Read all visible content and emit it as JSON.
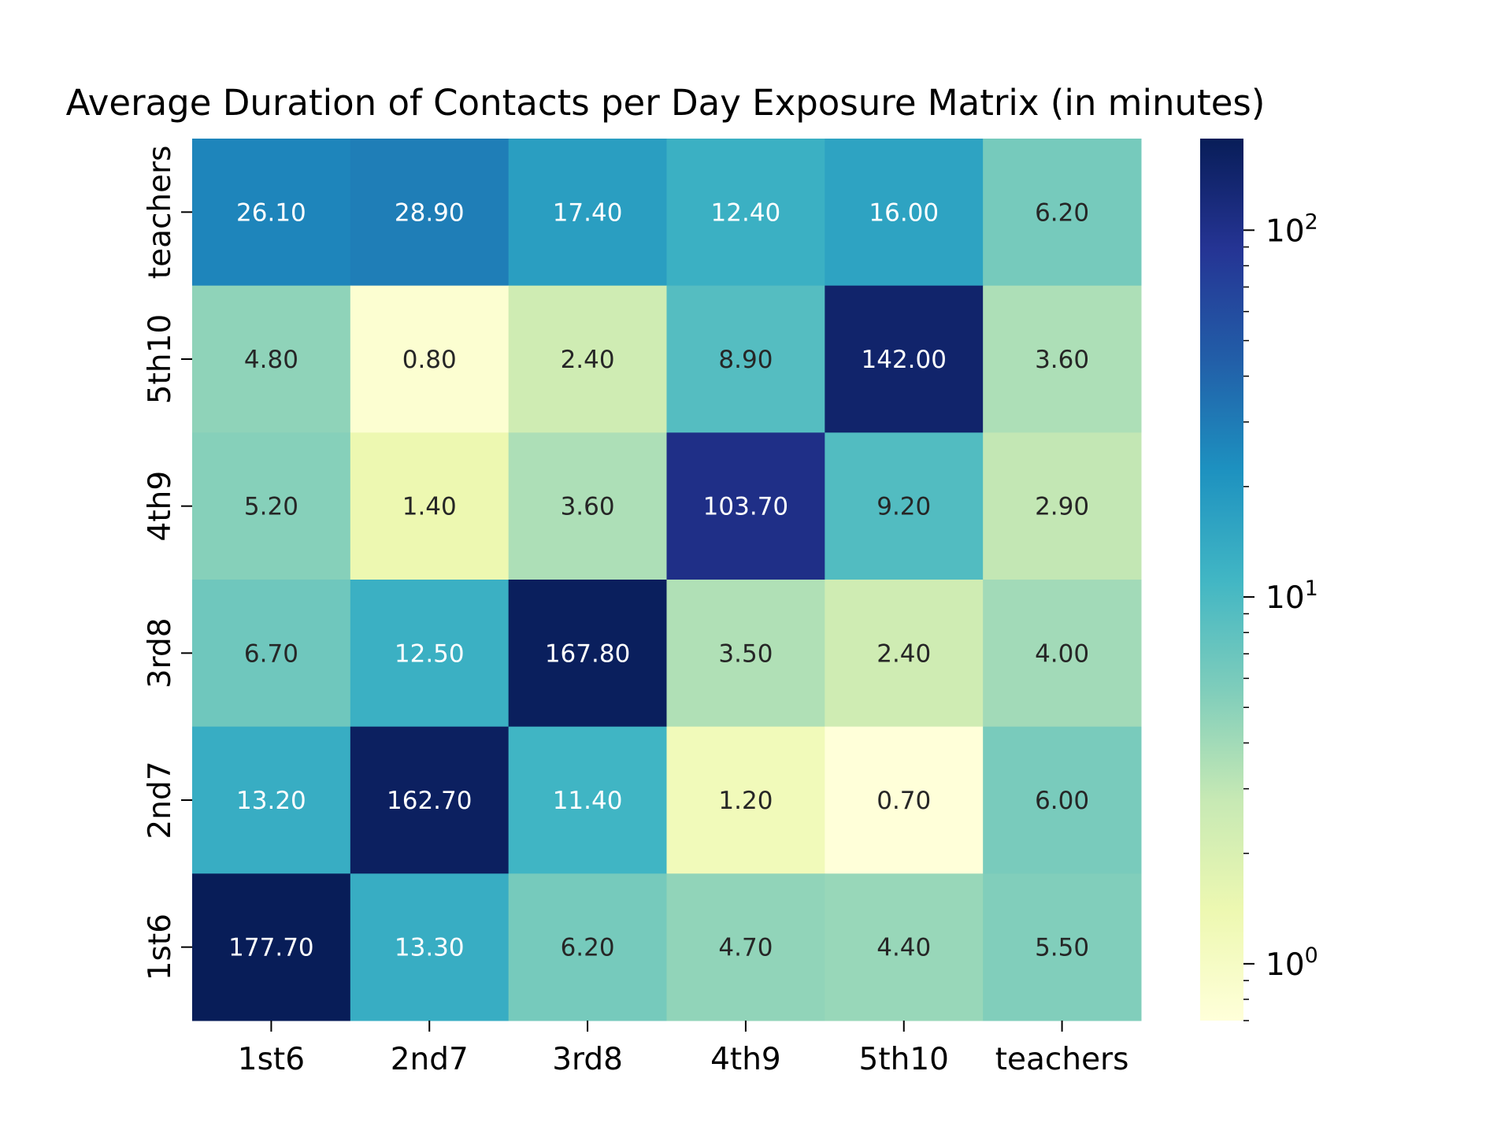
{
  "chart_data": {
    "type": "heatmap",
    "title": "Average Duration of Contacts per Day Exposure Matrix (in minutes)",
    "x_categories": [
      "1st6",
      "2nd7",
      "3rd8",
      "4th9",
      "5th10",
      "teachers"
    ],
    "y_categories_top_to_bottom": [
      "teachers",
      "5th10",
      "4th9",
      "3rd8",
      "2nd7",
      "1st6"
    ],
    "values_top_to_bottom": [
      [
        26.1,
        28.9,
        17.4,
        12.4,
        16.0,
        6.2
      ],
      [
        4.8,
        0.8,
        2.4,
        8.9,
        142.0,
        3.6
      ],
      [
        5.2,
        1.4,
        3.6,
        103.7,
        9.2,
        2.9
      ],
      [
        6.7,
        12.5,
        167.8,
        3.5,
        2.4,
        4.0
      ],
      [
        13.2,
        162.7,
        11.4,
        1.2,
        0.7,
        6.0
      ],
      [
        177.7,
        13.3,
        6.2,
        4.7,
        4.4,
        5.5
      ]
    ],
    "value_format": "%.2f",
    "colorbar": {
      "scale": "log",
      "range": [
        0.7,
        177.7
      ],
      "colormap": "YlGnBu",
      "ticks": [
        {
          "base": "10",
          "exp": "0",
          "value": 1
        },
        {
          "base": "10",
          "exp": "1",
          "value": 10
        },
        {
          "base": "10",
          "exp": "2",
          "value": 100
        }
      ]
    },
    "grid": false
  }
}
